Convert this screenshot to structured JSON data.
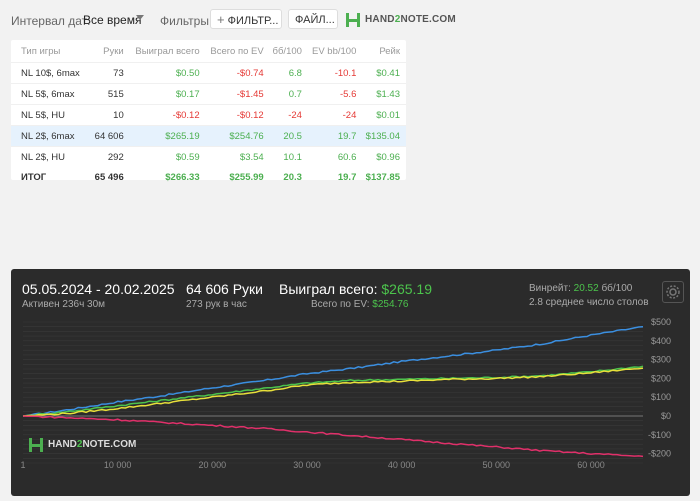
{
  "filters": {
    "date_label": "Интервал дат:",
    "date_value": "Все время",
    "filters_label": "Фильтры:",
    "filter_button": "ФИЛЬТР...",
    "file_button": "ФАЙЛ...",
    "logo_a": "HAND",
    "logo_b": "2",
    "logo_c": "NOTE.COM"
  },
  "table": {
    "headers": [
      "Тип игры",
      "Руки",
      "Выиграл всего",
      "Всего по EV",
      "бб/100",
      "EV bb/100",
      "Рейк"
    ],
    "rows": [
      {
        "game": "NL 10$, 6max",
        "hands": "73",
        "won": "$0.50",
        "ev": "-$0.74",
        "bb100": "6.8",
        "evbb": "-10.1",
        "rake": "$0.41"
      },
      {
        "game": "NL 5$, 6max",
        "hands": "515",
        "won": "$0.17",
        "ev": "-$1.45",
        "bb100": "0.7",
        "evbb": "-5.6",
        "rake": "$1.43"
      },
      {
        "game": "NL 5$, HU",
        "hands": "10",
        "won": "-$0.12",
        "ev": "-$0.12",
        "bb100": "-24",
        "evbb": "-24",
        "rake": "$0.01"
      },
      {
        "game": "NL 2$, 6max",
        "hands": "64 606",
        "won": "$265.19",
        "ev": "$254.76",
        "bb100": "20.5",
        "evbb": "19.7",
        "rake": "$135.04"
      },
      {
        "game": "NL 2$, HU",
        "hands": "292",
        "won": "$0.59",
        "ev": "$3.54",
        "bb100": "10.1",
        "evbb": "60.6",
        "rake": "$0.96"
      }
    ],
    "total": {
      "game": "ИТОГ",
      "hands": "65 496",
      "won": "$266.33",
      "ev": "$255.99",
      "bb100": "20.3",
      "evbb": "19.7",
      "rake": "$137.85"
    }
  },
  "graph": {
    "date_range": "05.05.2024 - 20.02.2025",
    "active": "Активен 236ч 30м",
    "hands": "64 606 Руки",
    "hands_per_hour": "273 рук в час",
    "won_label": "Выиграл всего:",
    "won_value": "$265.19",
    "ev_label": "Всего по EV:",
    "ev_value": "$254.76",
    "winrate_label": "Винрейт:",
    "winrate_value": "20.52",
    "winrate_unit": "бб/100",
    "avg_tables": "2.8 среднее число столов",
    "watermark_a": "HAND",
    "watermark_b": "2",
    "watermark_c": "NOTE.COM"
  },
  "chart_data": {
    "type": "line",
    "xlim": [
      1,
      65496
    ],
    "ylim": [
      -250,
      500
    ],
    "x_ticks": [
      1,
      10000,
      20000,
      30000,
      40000,
      50000,
      60000
    ],
    "x_tick_labels": [
      "1",
      "10 000",
      "20 000",
      "30 000",
      "40 000",
      "50 000",
      "60 000"
    ],
    "y_ticks": [
      500,
      400,
      300,
      200,
      100,
      0,
      -100,
      -200
    ],
    "y_tick_labels": [
      "$500",
      "$400",
      "$300",
      "$200",
      "$100",
      "$0",
      "-$100",
      "-$200"
    ],
    "series": [
      {
        "color": "#3b8fe0",
        "x": [
          0,
          5000,
          10000,
          15000,
          20000,
          25000,
          30000,
          35000,
          40000,
          45000,
          50000,
          55000,
          60000,
          65496
        ],
        "y": [
          0,
          35,
          75,
          110,
          150,
          185,
          225,
          255,
          290,
          320,
          350,
          385,
          430,
          475
        ]
      },
      {
        "color": "#4cc34c",
        "x": [
          0,
          5000,
          10000,
          15000,
          20000,
          25000,
          30000,
          35000,
          40000,
          45000,
          50000,
          55000,
          60000,
          65496
        ],
        "y": [
          0,
          25,
          55,
          85,
          115,
          145,
          175,
          190,
          195,
          200,
          205,
          215,
          235,
          265
        ]
      },
      {
        "color": "#e8e03a",
        "x": [
          0,
          5000,
          10000,
          15000,
          20000,
          25000,
          30000,
          35000,
          40000,
          45000,
          50000,
          55000,
          60000,
          65496
        ],
        "y": [
          0,
          15,
          40,
          70,
          100,
          130,
          165,
          180,
          185,
          195,
          200,
          210,
          230,
          255
        ]
      },
      {
        "color": "#e0306a",
        "x": [
          0,
          5000,
          10000,
          15000,
          20000,
          25000,
          30000,
          35000,
          40000,
          45000,
          50000,
          55000,
          60000,
          65496
        ],
        "y": [
          0,
          -10,
          -20,
          -35,
          -50,
          -65,
          -85,
          -105,
          -125,
          -145,
          -165,
          -185,
          -200,
          -215
        ]
      }
    ]
  }
}
